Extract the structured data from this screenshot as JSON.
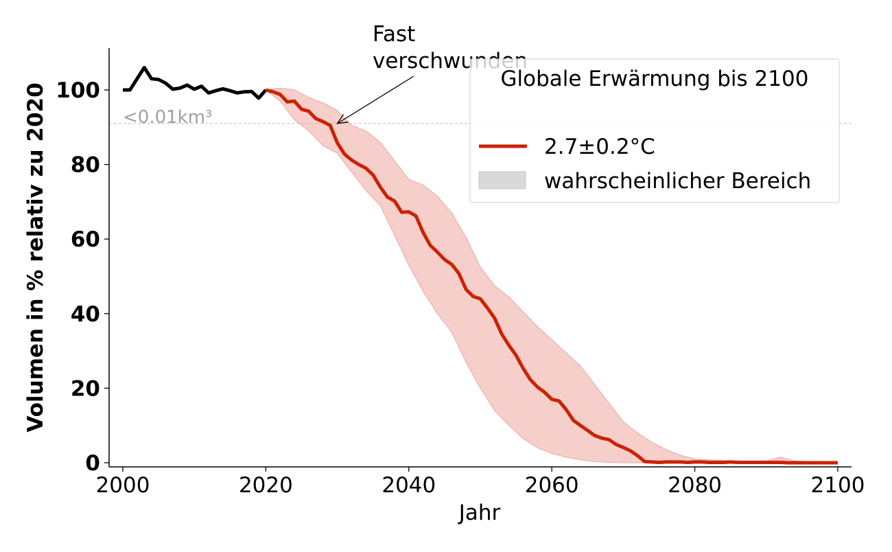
{
  "chart_data": {
    "type": "line",
    "xlabel": "Jahr",
    "ylabel": "Volumen in % relativ zu 2020",
    "xlim": [
      2000,
      2100
    ],
    "ylim": [
      0,
      110
    ],
    "x_ticks": [
      "2000",
      "2020",
      "2040",
      "2060",
      "2080",
      "2100"
    ],
    "y_ticks": [
      "0",
      "20",
      "40",
      "60",
      "80",
      "100"
    ],
    "grid": false,
    "legend": {
      "title": "Globale Erwärmung bis 2100",
      "placement": "top-right",
      "entries": [
        "2.7±0.2°C",
        "wahrscheinlicher Bereich"
      ]
    },
    "threshold": {
      "y": 91,
      "label": "<0.01km³"
    },
    "annotation": {
      "text_line1": "Fast",
      "text_line2": "verschwunden",
      "x": 2030,
      "y": 91
    },
    "colors": {
      "historical": "#000000",
      "projection": "#cc2200",
      "band": "#f6cfcb",
      "band_edge": "#e9a79f",
      "threshold": "#bbbbbb",
      "threshold_label": "#a0a0a0"
    },
    "series": [
      {
        "role": "historical",
        "x": [
          2000,
          2001,
          2002,
          2003,
          2004,
          2005,
          2006,
          2007,
          2008,
          2009,
          2010,
          2011,
          2012,
          2013,
          2014,
          2015,
          2016,
          2017,
          2018,
          2019,
          2020
        ],
        "values": [
          100,
          100,
          103,
          106,
          103,
          102.8,
          101.8,
          100.2,
          100.5,
          101.3,
          100.2,
          101,
          99.2,
          99.8,
          100.3,
          99.8,
          99.2,
          99.5,
          99.6,
          97.8,
          100
        ]
      },
      {
        "role": "projection",
        "name": "2.7±0.2°C",
        "x": [
          2020,
          2021,
          2022,
          2023,
          2024,
          2025,
          2026,
          2027,
          2028,
          2029,
          2030,
          2031,
          2032,
          2033,
          2034,
          2035,
          2036,
          2037,
          2038,
          2039,
          2040,
          2041,
          2042,
          2043,
          2044,
          2045,
          2046,
          2047,
          2048,
          2049,
          2050,
          2051,
          2052,
          2053,
          2054,
          2055,
          2056,
          2057,
          2058,
          2059,
          2060,
          2061,
          2062,
          2063,
          2064,
          2065,
          2066,
          2067,
          2068,
          2069,
          2070,
          2071,
          2072,
          2073,
          2074,
          2075,
          2076,
          2077,
          2078,
          2079,
          2080,
          2081,
          2082,
          2083,
          2084,
          2085,
          2086,
          2087,
          2088,
          2089,
          2090,
          2091,
          2092,
          2093,
          2094,
          2095,
          2096,
          2097,
          2098,
          2099,
          2100
        ],
        "values": [
          100,
          99.5,
          98.8,
          96.8,
          97,
          94.8,
          94.3,
          92.3,
          91.5,
          90.5,
          85.8,
          82.8,
          81.2,
          80,
          79,
          77.2,
          74,
          71.3,
          70.2,
          67.2,
          67.3,
          66.2,
          61.8,
          58.3,
          56.5,
          54.5,
          53.2,
          50.8,
          46.5,
          44.6,
          44,
          41.5,
          38.8,
          34.5,
          31.5,
          28.8,
          25.3,
          22.3,
          20.3,
          18.9,
          17,
          16.6,
          14.3,
          11.4,
          10,
          8.7,
          7.3,
          6.6,
          6.2,
          4.9,
          4.1,
          3.2,
          1.9,
          0.3,
          0.2,
          0.1,
          0.2,
          0.2,
          0.2,
          0.1,
          0.2,
          0.2,
          0.1,
          0.1,
          0.1,
          0.2,
          0.1,
          0.1,
          0.1,
          0.1,
          0.1,
          0.1,
          0.1,
          0,
          0,
          0,
          0,
          0,
          0,
          0,
          0
        ]
      },
      {
        "role": "band",
        "name": "wahrscheinlicher Bereich",
        "x": [
          2020,
          2022,
          2024,
          2026,
          2028,
          2030,
          2032,
          2034,
          2036,
          2038,
          2040,
          2042,
          2044,
          2046,
          2048,
          2050,
          2052,
          2054,
          2056,
          2058,
          2060,
          2062,
          2064,
          2066,
          2068,
          2070,
          2072,
          2074,
          2076,
          2078,
          2080,
          2085,
          2090,
          2092,
          2094,
          2100
        ],
        "upper": [
          100,
          100.5,
          100,
          98,
          96.5,
          94.5,
          90.5,
          89,
          86,
          81,
          76,
          74.5,
          71.5,
          67,
          60.5,
          52.5,
          47.5,
          44.5,
          40.5,
          36.5,
          33,
          29.5,
          26,
          21,
          16,
          11,
          8,
          5.5,
          3.5,
          2,
          1,
          0.5,
          0.5,
          1.5,
          0.5,
          0
        ],
        "lower": [
          100,
          97,
          92,
          89,
          85,
          83,
          78,
          73,
          69,
          61,
          53,
          46,
          40,
          35,
          27,
          20,
          14,
          10,
          6.5,
          4,
          2.5,
          1.5,
          0.8,
          0.3,
          0.1,
          0,
          0,
          0,
          0,
          0,
          0,
          0,
          0,
          0,
          0,
          0
        ]
      }
    ]
  }
}
